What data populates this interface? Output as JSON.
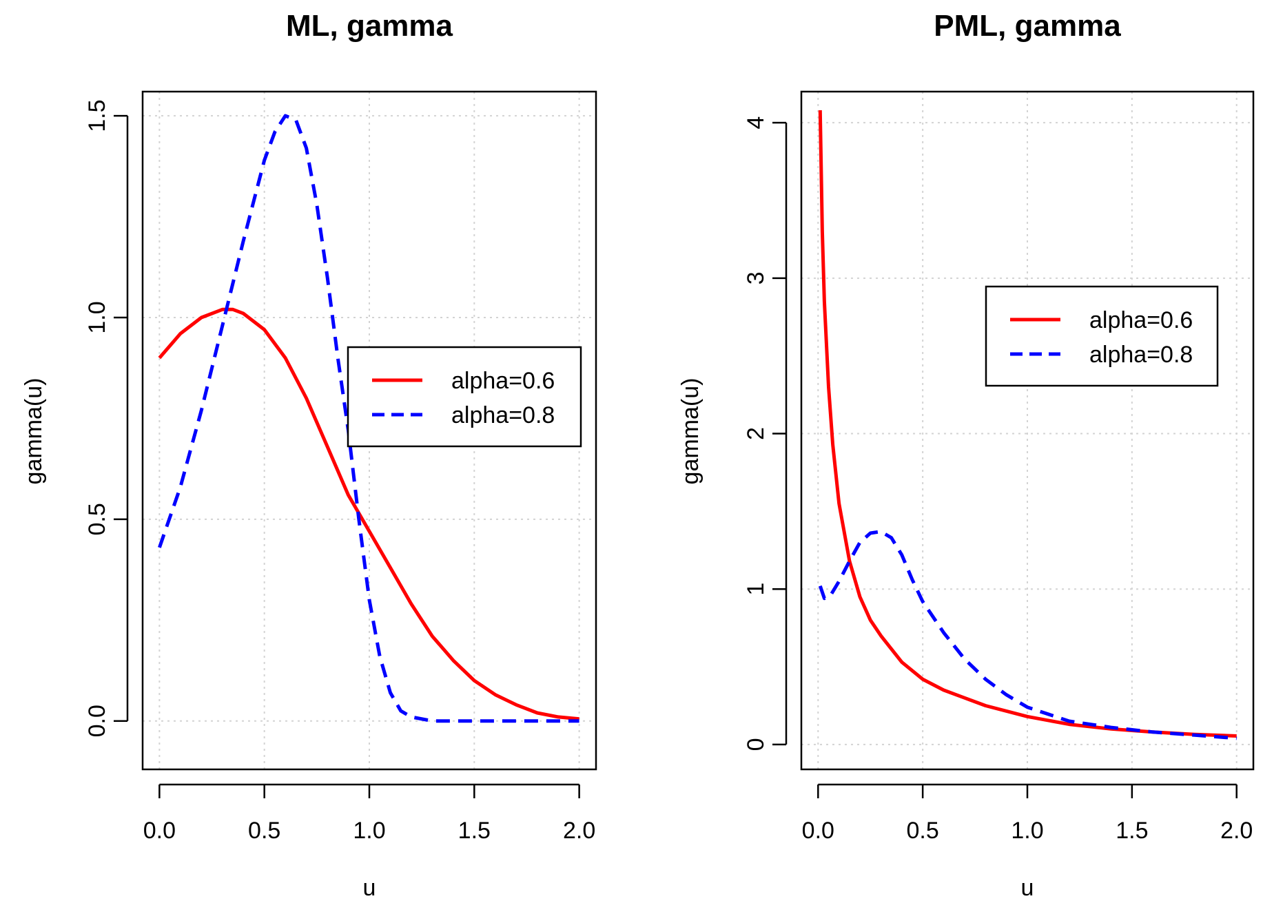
{
  "chart_data": [
    {
      "type": "line",
      "title": "ML, gamma",
      "xlabel": "u",
      "ylabel": "gamma(u)",
      "xlim": [
        -0.08,
        2.08
      ],
      "ylim": [
        -0.12,
        1.56
      ],
      "xticks": [
        0.0,
        0.5,
        1.0,
        1.5,
        2.0
      ],
      "xtick_labels": [
        "0.0",
        "0.5",
        "1.0",
        "1.5",
        "2.0"
      ],
      "yticks": [
        0.0,
        0.5,
        1.0,
        1.5
      ],
      "ytick_labels": [
        "0.0",
        "0.5",
        "1.0",
        "1.5"
      ],
      "grid": true,
      "legend_position": "right",
      "series": [
        {
          "name": "alpha=0.6",
          "color": "#ff0000",
          "style": "solid",
          "x": [
            0.0,
            0.1,
            0.2,
            0.3,
            0.35,
            0.4,
            0.5,
            0.6,
            0.7,
            0.8,
            0.9,
            1.0,
            1.1,
            1.2,
            1.3,
            1.4,
            1.5,
            1.6,
            1.7,
            1.8,
            1.9,
            2.0
          ],
          "y": [
            0.9,
            0.96,
            1.0,
            1.02,
            1.02,
            1.01,
            0.97,
            0.9,
            0.8,
            0.68,
            0.56,
            0.47,
            0.38,
            0.29,
            0.21,
            0.15,
            0.1,
            0.065,
            0.04,
            0.02,
            0.01,
            0.005
          ]
        },
        {
          "name": "alpha=0.8",
          "color": "#0000ff",
          "style": "dashed",
          "x": [
            0.0,
            0.1,
            0.2,
            0.3,
            0.4,
            0.5,
            0.55,
            0.6,
            0.65,
            0.7,
            0.75,
            0.8,
            0.85,
            0.9,
            0.95,
            1.0,
            1.05,
            1.1,
            1.15,
            1.2,
            1.3,
            1.5,
            2.0
          ],
          "y": [
            0.43,
            0.58,
            0.77,
            0.98,
            1.19,
            1.39,
            1.46,
            1.5,
            1.49,
            1.42,
            1.28,
            1.1,
            0.9,
            0.72,
            0.5,
            0.3,
            0.16,
            0.07,
            0.025,
            0.01,
            0.0,
            0.0,
            0.0
          ]
        }
      ]
    },
    {
      "type": "line",
      "title": "PML, gamma",
      "xlabel": "u",
      "ylabel": "gamma(u)",
      "xlim": [
        -0.08,
        2.08
      ],
      "ylim": [
        -0.16,
        4.2
      ],
      "xticks": [
        0.0,
        0.5,
        1.0,
        1.5,
        2.0
      ],
      "xtick_labels": [
        "0.0",
        "0.5",
        "1.0",
        "1.5",
        "2.0"
      ],
      "yticks": [
        0,
        1,
        2,
        3,
        4
      ],
      "ytick_labels": [
        "0",
        "1",
        "2",
        "3",
        "4"
      ],
      "grid": true,
      "legend_position": "top-right",
      "series": [
        {
          "name": "alpha=0.6",
          "color": "#ff0000",
          "style": "solid",
          "x": [
            0.01,
            0.02,
            0.03,
            0.05,
            0.07,
            0.1,
            0.15,
            0.2,
            0.25,
            0.3,
            0.4,
            0.5,
            0.6,
            0.8,
            1.0,
            1.2,
            1.4,
            1.6,
            1.8,
            2.0
          ],
          "y": [
            4.08,
            3.3,
            2.85,
            2.3,
            1.93,
            1.55,
            1.18,
            0.95,
            0.8,
            0.7,
            0.53,
            0.42,
            0.35,
            0.25,
            0.18,
            0.13,
            0.1,
            0.08,
            0.065,
            0.055
          ]
        },
        {
          "name": "alpha=0.8",
          "color": "#0000ff",
          "style": "dashed",
          "x": [
            0.01,
            0.03,
            0.06,
            0.1,
            0.15,
            0.2,
            0.25,
            0.3,
            0.35,
            0.4,
            0.45,
            0.5,
            0.6,
            0.7,
            0.8,
            0.9,
            1.0,
            1.2,
            1.4,
            1.6,
            1.8,
            2.0
          ],
          "y": [
            1.02,
            0.94,
            0.96,
            1.05,
            1.18,
            1.3,
            1.36,
            1.37,
            1.33,
            1.22,
            1.06,
            0.92,
            0.72,
            0.55,
            0.42,
            0.32,
            0.24,
            0.15,
            0.11,
            0.08,
            0.06,
            0.04
          ]
        }
      ]
    }
  ]
}
